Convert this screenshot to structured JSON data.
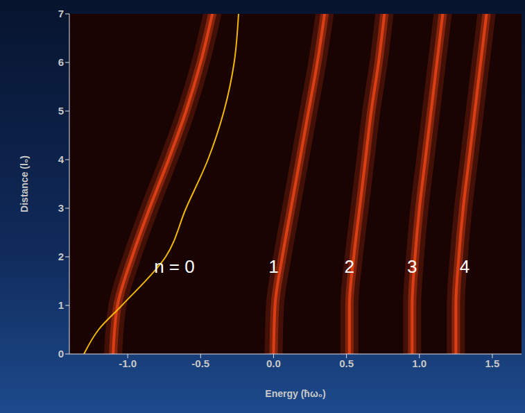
{
  "chart_data": {
    "type": "line",
    "x_label": "Energy (ħω₀)",
    "y_label": "Distance (l₀)",
    "xlim": [
      -1.4,
      1.7
    ],
    "ylim": [
      0,
      7
    ],
    "xticks": [
      {
        "value": -1.0,
        "label": "-1.0"
      },
      -0.5,
      {
        "value": 0,
        "label": "0.0"
      },
      0.5,
      {
        "value": 1,
        "label": "1.0"
      },
      1.5
    ],
    "yticks": [
      0,
      1,
      2,
      3,
      4,
      5,
      6,
      7
    ],
    "grid": false,
    "series": [
      {
        "color": "#ff4a1a",
        "line_style": "glow",
        "x": [
          -1.1,
          -1.07,
          -0.97,
          -0.85,
          -0.72,
          -0.6,
          -0.5,
          -0.42
        ],
        "y": [
          0,
          1,
          2,
          3,
          4,
          5,
          6,
          7
        ]
      },
      {
        "color": "#ff4a1a",
        "line_style": "glow",
        "x": [
          0,
          0.01,
          0.06,
          0.12,
          0.18,
          0.24,
          0.3,
          0.35
        ],
        "y": [
          0,
          1,
          2,
          3,
          4,
          5,
          6,
          7
        ]
      },
      {
        "color": "#ff4a1a",
        "line_style": "glow",
        "x": [
          0.52,
          0.52,
          0.55,
          0.59,
          0.63,
          0.67,
          0.72,
          0.76
        ],
        "y": [
          0,
          1,
          2,
          3,
          4,
          5,
          6,
          7
        ]
      },
      {
        "color": "#ff4a1a",
        "line_style": "glow",
        "x": [
          0.95,
          0.95,
          0.97,
          1.0,
          1.04,
          1.08,
          1.12,
          1.16
        ],
        "y": [
          0,
          1,
          2,
          3,
          4,
          5,
          6,
          7
        ]
      },
      {
        "color": "#ff4a1a",
        "line_style": "glow",
        "x": [
          1.25,
          1.25,
          1.27,
          1.3,
          1.34,
          1.38,
          1.42,
          1.46
        ],
        "y": [
          0,
          1,
          2,
          3,
          4,
          5,
          6,
          7
        ]
      },
      {
        "color": "#f2b705",
        "line_style": "solid",
        "x": [
          -1.3,
          -1.2,
          -1.04,
          -0.74,
          -0.6,
          -0.45,
          -0.34,
          -0.27,
          -0.24
        ],
        "y": [
          0,
          0.5,
          1,
          2,
          3,
          4,
          5,
          6,
          7
        ]
      }
    ],
    "annotations": [
      {
        "text": "n = 0",
        "x": -0.68,
        "y": 1.8
      },
      {
        "text": "1",
        "x": 0.0,
        "y": 1.8
      },
      {
        "text": "2",
        "x": 0.52,
        "y": 1.8
      },
      {
        "text": "3",
        "x": 0.95,
        "y": 1.8
      },
      {
        "text": "4",
        "x": 1.31,
        "y": 1.8
      }
    ]
  }
}
